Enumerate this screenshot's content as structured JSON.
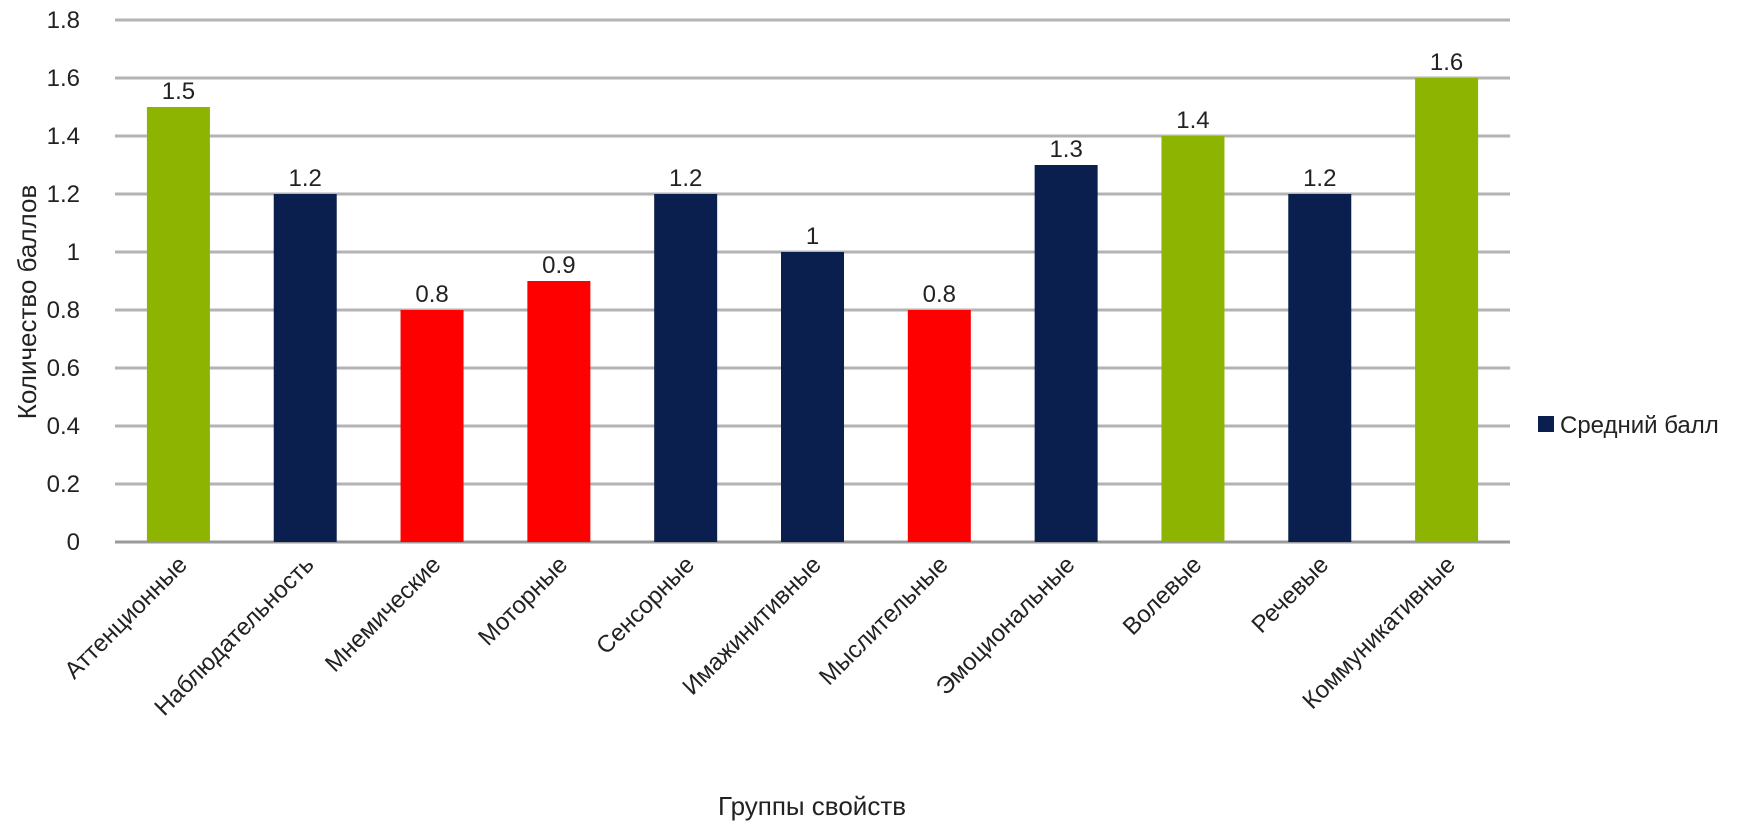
{
  "chart_data": {
    "type": "bar",
    "title": "",
    "xlabel": "Группы свойств",
    "ylabel": "Количество баллов",
    "ylim": [
      0,
      1.8
    ],
    "yticks": [
      0,
      0.2,
      0.4,
      0.6,
      0.8,
      1,
      1.2,
      1.4,
      1.6,
      1.8
    ],
    "ytick_labels": [
      "0",
      "0.2",
      "0.4",
      "0.6",
      "0.8",
      "1",
      "1.2",
      "1.4",
      "1.6",
      "1.8"
    ],
    "grid": true,
    "legend_position": "right",
    "categories": [
      "Аттенционные",
      "Наблюдательность",
      "Мнемические",
      "Моторные",
      "Сенсорные",
      "Имажинитивные",
      "Мыслительные",
      "Эмоциональные",
      "Волевые",
      "Речевые",
      "Коммуникативные"
    ],
    "series": [
      {
        "name": "Средний балл",
        "values": [
          1.5,
          1.2,
          0.8,
          0.9,
          1.2,
          1,
          0.8,
          1.3,
          1.4,
          1.2,
          1.6
        ],
        "value_labels": [
          "1.5",
          "1.2",
          "0.8",
          "0.9",
          "1.2",
          "1",
          "0.8",
          "1.3",
          "1.4",
          "1.2",
          "1.6"
        ],
        "bar_colors": [
          "#8cb400",
          "#0b1f4f",
          "#ff0000",
          "#ff0000",
          "#0b1f4f",
          "#0b1f4f",
          "#ff0000",
          "#0b1f4f",
          "#8cb400",
          "#0b1f4f",
          "#8cb400"
        ]
      }
    ],
    "legend_color": "#0b1f4f",
    "gridline_color": "#b3b3b3"
  }
}
